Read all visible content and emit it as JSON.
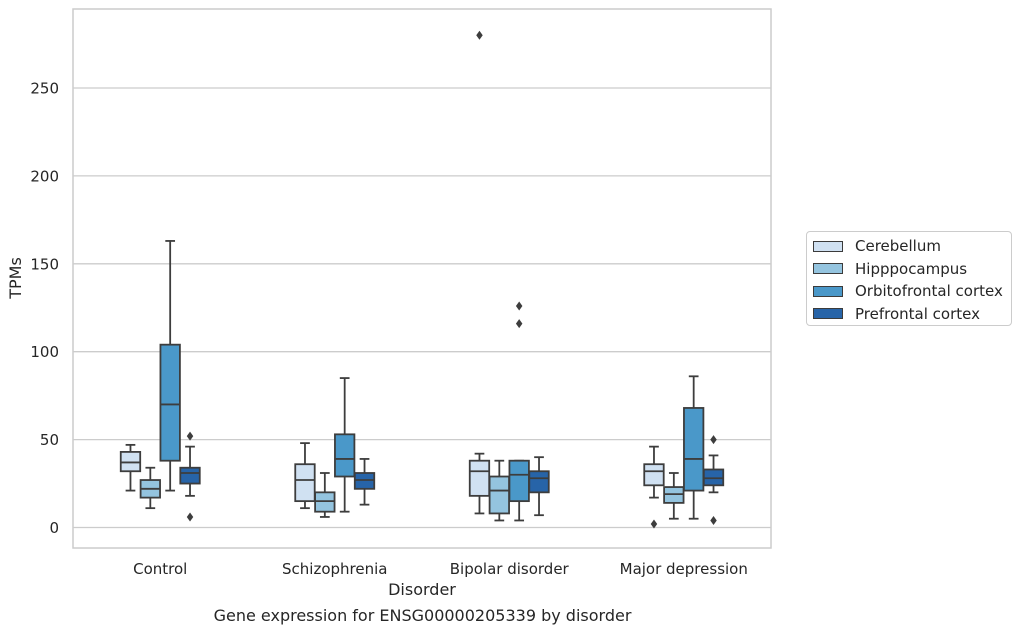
{
  "chart_data": {
    "type": "box",
    "title": "",
    "xlabel": "Disorder",
    "ylabel": "TPMs",
    "caption": "Gene expression for ENSG00000205339 by disorder",
    "ylim": [
      -11,
      294
    ],
    "yticks": [
      0,
      50,
      100,
      150,
      200,
      250
    ],
    "grid": "horizontal",
    "legend_position": "right",
    "categories": [
      "Control",
      "Schizophrenia",
      "Bipolar disorder",
      "Major depression"
    ],
    "series": [
      {
        "name": "Cerebellum",
        "color": "#d0e1f2",
        "boxes": [
          {
            "whislo": 21,
            "q1": 32,
            "med": 37,
            "q3": 43,
            "whishi": 47,
            "fliers": []
          },
          {
            "whislo": 11,
            "q1": 15,
            "med": 27,
            "q3": 36,
            "whishi": 48,
            "fliers": []
          },
          {
            "whislo": 8,
            "q1": 18,
            "med": 32,
            "q3": 38,
            "whishi": 42,
            "fliers": [
              280
            ]
          },
          {
            "whislo": 17,
            "q1": 24,
            "med": 32,
            "q3": 36,
            "whishi": 46,
            "fliers": [
              2
            ]
          }
        ]
      },
      {
        "name": "Hipppocampus",
        "color": "#94c4df",
        "boxes": [
          {
            "whislo": 11,
            "q1": 17,
            "med": 22,
            "q3": 27,
            "whishi": 34,
            "fliers": []
          },
          {
            "whislo": 6,
            "q1": 9,
            "med": 15,
            "q3": 20,
            "whishi": 31,
            "fliers": []
          },
          {
            "whislo": 4,
            "q1": 8,
            "med": 21,
            "q3": 29,
            "whishi": 38,
            "fliers": []
          },
          {
            "whislo": 5,
            "q1": 14,
            "med": 19,
            "q3": 23,
            "whishi": 31,
            "fliers": []
          }
        ]
      },
      {
        "name": "Orbitofrontal cortex",
        "color": "#4a98c9",
        "boxes": [
          {
            "whislo": 21,
            "q1": 38,
            "med": 70,
            "q3": 104,
            "whishi": 163,
            "fliers": []
          },
          {
            "whislo": 9,
            "q1": 29,
            "med": 39,
            "q3": 53,
            "whishi": 85,
            "fliers": []
          },
          {
            "whislo": 4,
            "q1": 15,
            "med": 30,
            "q3": 38,
            "whishi": 38,
            "fliers": [
              126,
              116
            ]
          },
          {
            "whislo": 5,
            "q1": 21,
            "med": 39,
            "q3": 68,
            "whishi": 86,
            "fliers": []
          }
        ]
      },
      {
        "name": "Prefrontal cortex",
        "color": "#2764a8",
        "boxes": [
          {
            "whislo": 18,
            "q1": 25,
            "med": 31,
            "q3": 34,
            "whishi": 46,
            "fliers": [
              52,
              6
            ]
          },
          {
            "whislo": 13,
            "q1": 22,
            "med": 27,
            "q3": 31,
            "whishi": 39,
            "fliers": []
          },
          {
            "whislo": 7,
            "q1": 20,
            "med": 28,
            "q3": 32,
            "whishi": 40,
            "fliers": []
          },
          {
            "whislo": 20,
            "q1": 24,
            "med": 28,
            "q3": 33,
            "whishi": 41,
            "fliers": [
              50,
              4
            ]
          }
        ]
      }
    ]
  }
}
